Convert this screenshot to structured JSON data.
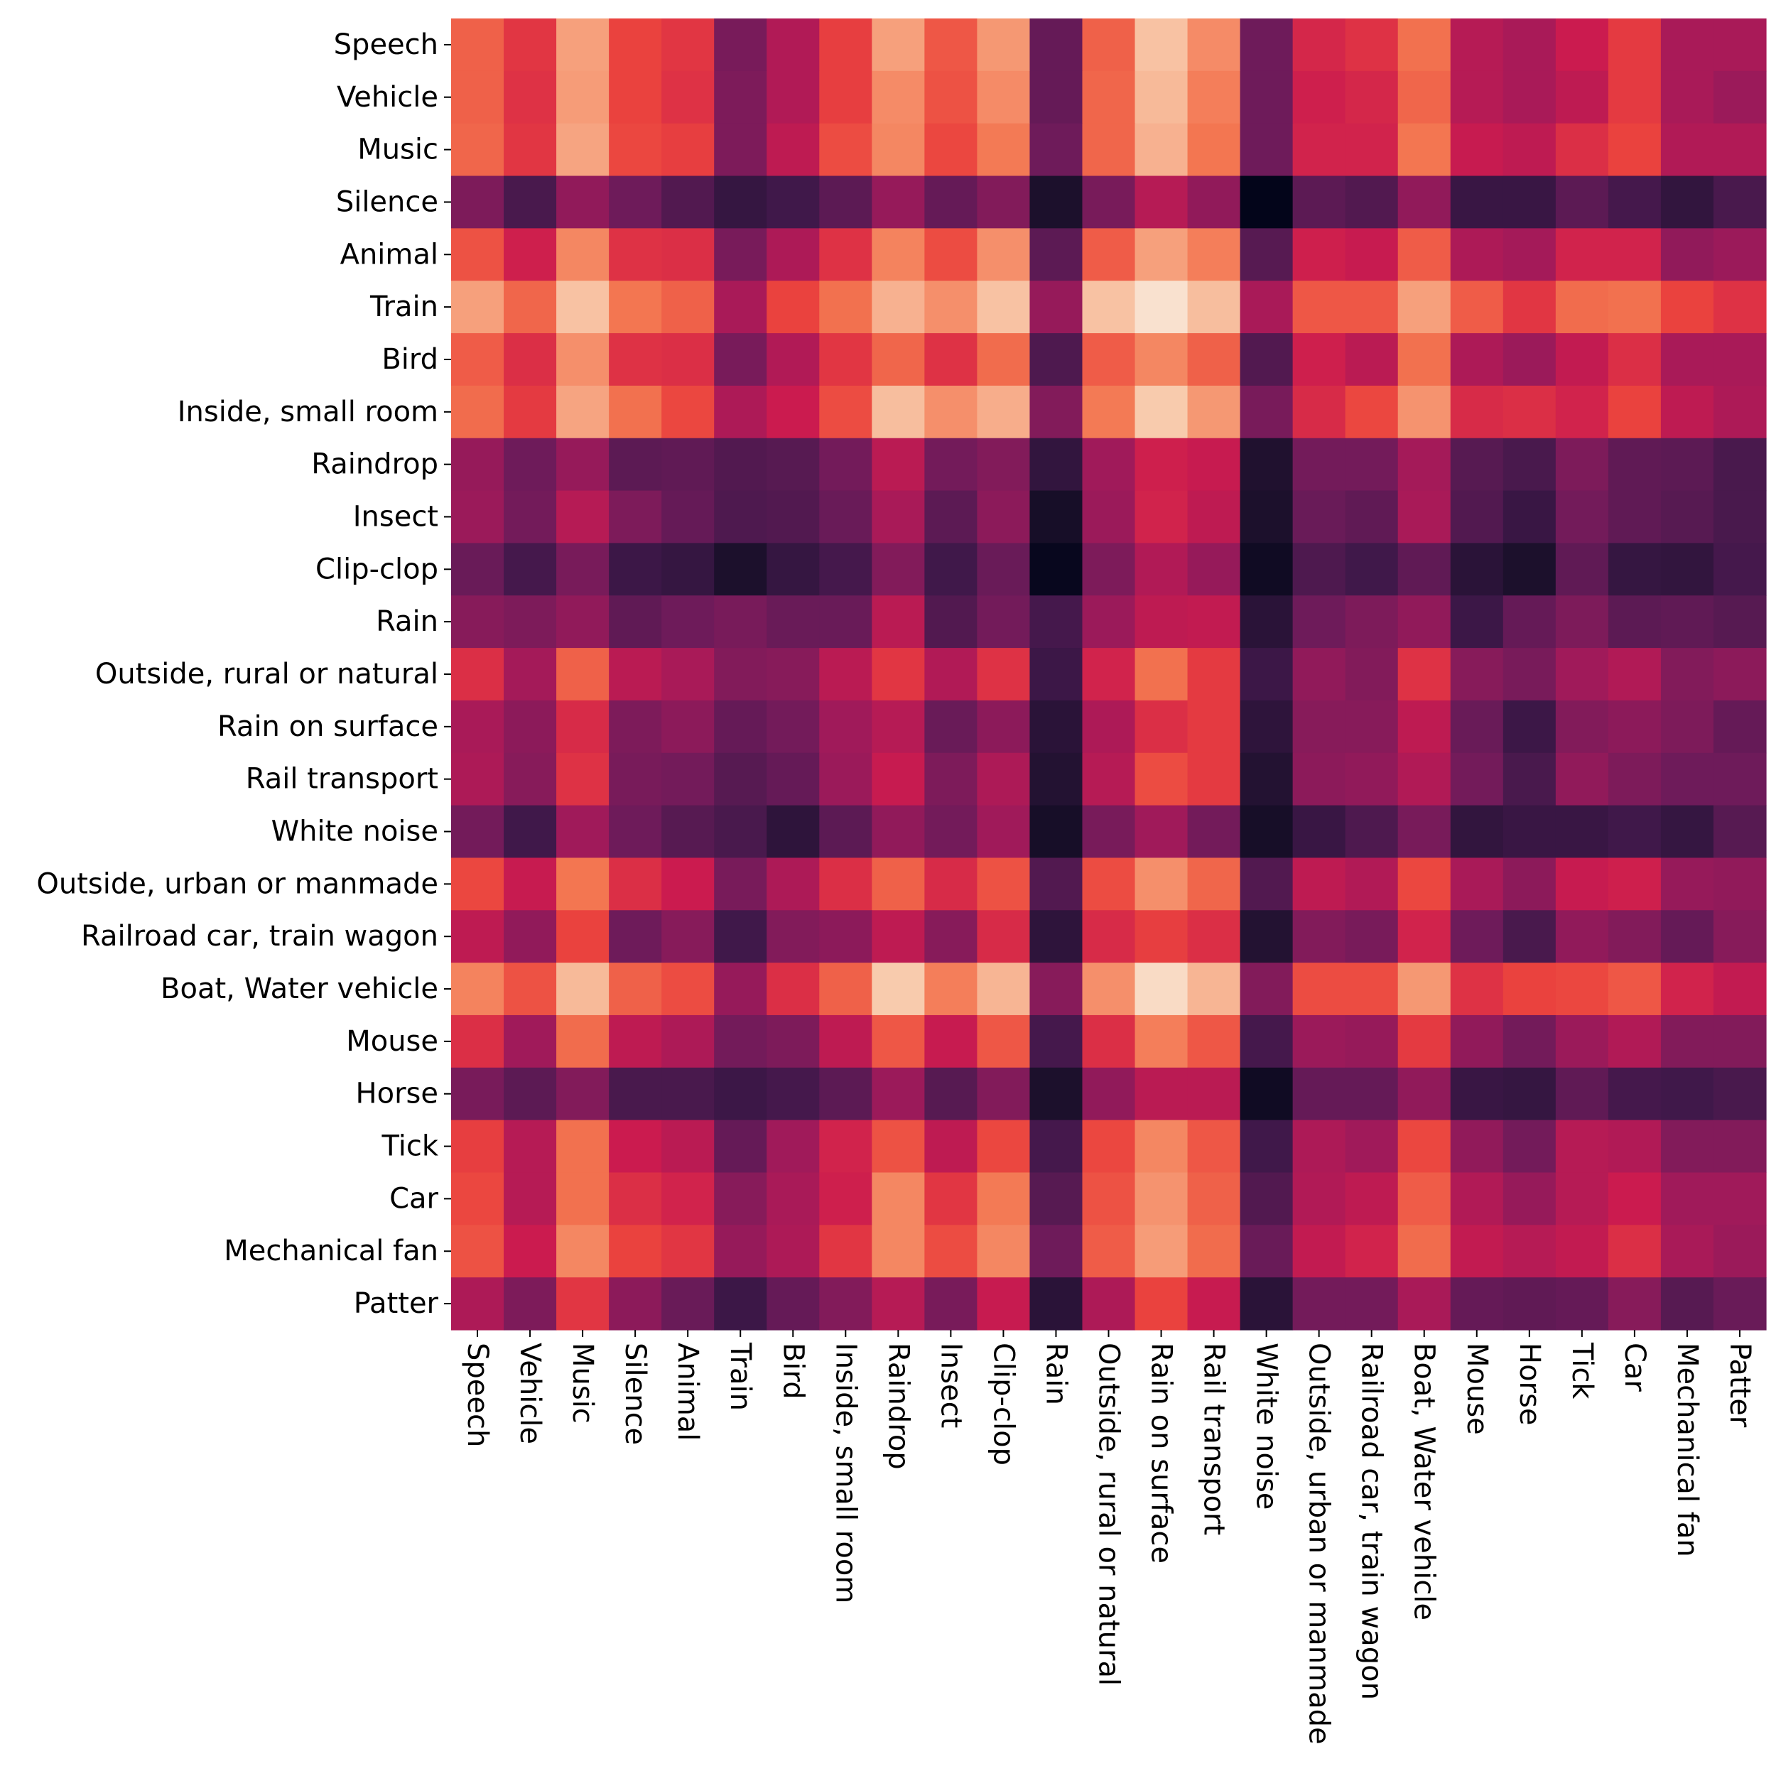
{
  "chart_data": {
    "type": "heatmap",
    "title": "",
    "xlabel": "",
    "ylabel": "",
    "colormap": "rocket",
    "value_range": [
      0,
      1
    ],
    "row_labels": [
      "Speech",
      "Vehicle",
      "Music",
      "Silence",
      "Animal",
      "Train",
      "Bird",
      "Inside, small room",
      "Raindrop",
      "Insect",
      "Clip-clop",
      "Rain",
      "Outside, rural or natural",
      "Rain on surface",
      "Rail transport",
      "White noise",
      "Outside, urban or manmade",
      "Railroad car, train wagon",
      "Boat, Water vehicle",
      "Mouse",
      "Horse",
      "Tick",
      "Car",
      "Mechanical fan",
      "Patter"
    ],
    "col_labels": [
      "Speech",
      "Vehicle",
      "Music",
      "Silence",
      "Animal",
      "Train",
      "Bird",
      "Inside, small room",
      "Raindrop",
      "Insect",
      "Clip-clop",
      "Rain",
      "Outside, rural or natural",
      "Rain on surface",
      "Rail transport",
      "White noise",
      "Outside, urban or manmade",
      "Railroad car, train wagon",
      "Boat, Water vehicle",
      "Mouse",
      "Horse",
      "Tick",
      "Car",
      "Mechanical fan",
      "Patter"
    ],
    "values": [
      [
        0.66,
        0.57,
        0.8,
        0.6,
        0.57,
        0.32,
        0.44,
        0.59,
        0.8,
        0.64,
        0.78,
        0.28,
        0.66,
        0.88,
        0.75,
        0.3,
        0.53,
        0.56,
        0.69,
        0.45,
        0.42,
        0.5,
        0.58,
        0.42,
        0.42
      ],
      [
        0.66,
        0.56,
        0.79,
        0.6,
        0.56,
        0.33,
        0.44,
        0.59,
        0.75,
        0.63,
        0.75,
        0.28,
        0.67,
        0.86,
        0.72,
        0.3,
        0.51,
        0.53,
        0.67,
        0.45,
        0.42,
        0.47,
        0.58,
        0.42,
        0.39
      ],
      [
        0.67,
        0.57,
        0.81,
        0.61,
        0.59,
        0.33,
        0.47,
        0.62,
        0.74,
        0.61,
        0.71,
        0.3,
        0.67,
        0.84,
        0.7,
        0.3,
        0.52,
        0.52,
        0.7,
        0.49,
        0.47,
        0.55,
        0.6,
        0.44,
        0.44
      ],
      [
        0.33,
        0.22,
        0.37,
        0.3,
        0.24,
        0.17,
        0.2,
        0.26,
        0.38,
        0.28,
        0.34,
        0.1,
        0.32,
        0.45,
        0.37,
        0.0,
        0.26,
        0.24,
        0.37,
        0.18,
        0.18,
        0.26,
        0.21,
        0.16,
        0.22
      ],
      [
        0.63,
        0.51,
        0.74,
        0.56,
        0.55,
        0.32,
        0.43,
        0.56,
        0.73,
        0.62,
        0.76,
        0.26,
        0.65,
        0.8,
        0.72,
        0.25,
        0.51,
        0.49,
        0.65,
        0.43,
        0.41,
        0.52,
        0.52,
        0.37,
        0.39
      ],
      [
        0.8,
        0.67,
        0.88,
        0.7,
        0.66,
        0.42,
        0.6,
        0.69,
        0.84,
        0.76,
        0.88,
        0.38,
        0.88,
        0.97,
        0.87,
        0.42,
        0.64,
        0.64,
        0.8,
        0.65,
        0.57,
        0.68,
        0.69,
        0.6,
        0.56
      ],
      [
        0.65,
        0.55,
        0.76,
        0.56,
        0.55,
        0.32,
        0.44,
        0.57,
        0.67,
        0.56,
        0.68,
        0.23,
        0.65,
        0.74,
        0.66,
        0.24,
        0.51,
        0.46,
        0.69,
        0.43,
        0.39,
        0.48,
        0.55,
        0.42,
        0.42
      ],
      [
        0.68,
        0.58,
        0.81,
        0.69,
        0.61,
        0.43,
        0.5,
        0.62,
        0.87,
        0.76,
        0.83,
        0.34,
        0.71,
        0.9,
        0.78,
        0.32,
        0.54,
        0.61,
        0.77,
        0.54,
        0.55,
        0.52,
        0.6,
        0.47,
        0.43
      ],
      [
        0.38,
        0.3,
        0.38,
        0.26,
        0.27,
        0.24,
        0.25,
        0.31,
        0.46,
        0.31,
        0.34,
        0.16,
        0.4,
        0.51,
        0.49,
        0.11,
        0.31,
        0.31,
        0.41,
        0.25,
        0.22,
        0.33,
        0.27,
        0.26,
        0.22
      ],
      [
        0.39,
        0.31,
        0.45,
        0.33,
        0.28,
        0.23,
        0.24,
        0.29,
        0.42,
        0.26,
        0.36,
        0.08,
        0.39,
        0.52,
        0.47,
        0.1,
        0.29,
        0.27,
        0.42,
        0.24,
        0.18,
        0.31,
        0.27,
        0.25,
        0.22
      ],
      [
        0.29,
        0.21,
        0.32,
        0.19,
        0.17,
        0.1,
        0.17,
        0.21,
        0.34,
        0.2,
        0.29,
        0.02,
        0.33,
        0.44,
        0.38,
        0.05,
        0.23,
        0.2,
        0.27,
        0.14,
        0.1,
        0.27,
        0.17,
        0.16,
        0.21
      ],
      [
        0.35,
        0.33,
        0.37,
        0.27,
        0.3,
        0.32,
        0.29,
        0.29,
        0.46,
        0.24,
        0.31,
        0.21,
        0.39,
        0.47,
        0.48,
        0.14,
        0.3,
        0.33,
        0.37,
        0.19,
        0.28,
        0.33,
        0.26,
        0.27,
        0.25
      ],
      [
        0.55,
        0.41,
        0.66,
        0.46,
        0.42,
        0.34,
        0.35,
        0.46,
        0.57,
        0.44,
        0.56,
        0.19,
        0.52,
        0.69,
        0.58,
        0.19,
        0.37,
        0.34,
        0.56,
        0.35,
        0.32,
        0.4,
        0.44,
        0.34,
        0.36
      ],
      [
        0.42,
        0.36,
        0.54,
        0.33,
        0.36,
        0.28,
        0.31,
        0.4,
        0.45,
        0.29,
        0.36,
        0.14,
        0.43,
        0.55,
        0.58,
        0.15,
        0.35,
        0.35,
        0.47,
        0.29,
        0.19,
        0.34,
        0.36,
        0.33,
        0.28
      ],
      [
        0.43,
        0.35,
        0.56,
        0.32,
        0.31,
        0.25,
        0.28,
        0.39,
        0.49,
        0.33,
        0.43,
        0.12,
        0.45,
        0.62,
        0.58,
        0.12,
        0.36,
        0.37,
        0.44,
        0.31,
        0.22,
        0.37,
        0.33,
        0.3,
        0.3
      ],
      [
        0.31,
        0.2,
        0.4,
        0.3,
        0.25,
        0.22,
        0.15,
        0.26,
        0.37,
        0.31,
        0.4,
        0.08,
        0.32,
        0.4,
        0.31,
        0.08,
        0.18,
        0.23,
        0.32,
        0.16,
        0.18,
        0.18,
        0.2,
        0.17,
        0.25
      ],
      [
        0.61,
        0.49,
        0.7,
        0.55,
        0.5,
        0.32,
        0.43,
        0.55,
        0.66,
        0.54,
        0.63,
        0.24,
        0.62,
        0.76,
        0.67,
        0.24,
        0.47,
        0.44,
        0.61,
        0.42,
        0.36,
        0.49,
        0.51,
        0.38,
        0.37
      ],
      [
        0.47,
        0.37,
        0.6,
        0.3,
        0.35,
        0.2,
        0.34,
        0.36,
        0.47,
        0.35,
        0.54,
        0.15,
        0.54,
        0.59,
        0.55,
        0.12,
        0.34,
        0.32,
        0.52,
        0.3,
        0.22,
        0.37,
        0.34,
        0.28,
        0.35
      ],
      [
        0.73,
        0.63,
        0.86,
        0.66,
        0.62,
        0.38,
        0.55,
        0.66,
        0.9,
        0.72,
        0.85,
        0.35,
        0.76,
        0.95,
        0.85,
        0.34,
        0.62,
        0.62,
        0.78,
        0.56,
        0.6,
        0.61,
        0.64,
        0.52,
        0.48
      ],
      [
        0.55,
        0.4,
        0.68,
        0.47,
        0.43,
        0.31,
        0.33,
        0.47,
        0.64,
        0.49,
        0.64,
        0.21,
        0.55,
        0.72,
        0.64,
        0.21,
        0.39,
        0.38,
        0.58,
        0.37,
        0.31,
        0.39,
        0.44,
        0.34,
        0.34
      ],
      [
        0.32,
        0.26,
        0.34,
        0.22,
        0.22,
        0.19,
        0.21,
        0.26,
        0.39,
        0.25,
        0.34,
        0.1,
        0.37,
        0.46,
        0.46,
        0.05,
        0.28,
        0.28,
        0.37,
        0.18,
        0.17,
        0.27,
        0.21,
        0.2,
        0.22
      ],
      [
        0.59,
        0.45,
        0.69,
        0.5,
        0.46,
        0.28,
        0.4,
        0.52,
        0.63,
        0.47,
        0.61,
        0.21,
        0.61,
        0.74,
        0.64,
        0.2,
        0.43,
        0.4,
        0.61,
        0.37,
        0.31,
        0.45,
        0.44,
        0.34,
        0.34
      ],
      [
        0.61,
        0.45,
        0.69,
        0.55,
        0.52,
        0.35,
        0.42,
        0.51,
        0.74,
        0.57,
        0.71,
        0.25,
        0.63,
        0.77,
        0.66,
        0.24,
        0.44,
        0.47,
        0.65,
        0.44,
        0.38,
        0.45,
        0.5,
        0.4,
        0.4
      ],
      [
        0.63,
        0.5,
        0.74,
        0.6,
        0.57,
        0.38,
        0.43,
        0.57,
        0.74,
        0.62,
        0.74,
        0.3,
        0.65,
        0.79,
        0.68,
        0.29,
        0.48,
        0.52,
        0.68,
        0.48,
        0.45,
        0.48,
        0.55,
        0.42,
        0.39
      ],
      [
        0.43,
        0.33,
        0.57,
        0.36,
        0.29,
        0.19,
        0.28,
        0.34,
        0.45,
        0.32,
        0.49,
        0.14,
        0.43,
        0.6,
        0.49,
        0.14,
        0.31,
        0.31,
        0.42,
        0.28,
        0.27,
        0.28,
        0.35,
        0.25,
        0.29
      ]
    ]
  }
}
